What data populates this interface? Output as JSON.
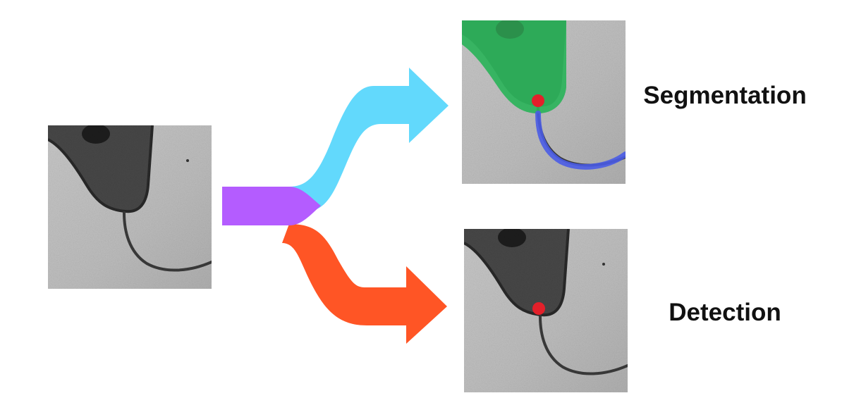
{
  "labels": {
    "segmentation": "Segmentation",
    "detection": "Detection"
  },
  "images": {
    "input": "input-micrograph",
    "segmentation_output": "segmentation-output-micrograph",
    "detection_output": "detection-output-micrograph"
  },
  "colors": {
    "stem_arrow": "#b45cff",
    "segmentation_arrow": "#62d9fc",
    "detection_arrow": "#ff5525",
    "cell_body_mask": "#2bb35a",
    "flagellum_mask": "#4a5ce6",
    "detection_point": "#e3202a",
    "micrograph_background": "#bcbcbc",
    "cell_body": "#474747"
  }
}
